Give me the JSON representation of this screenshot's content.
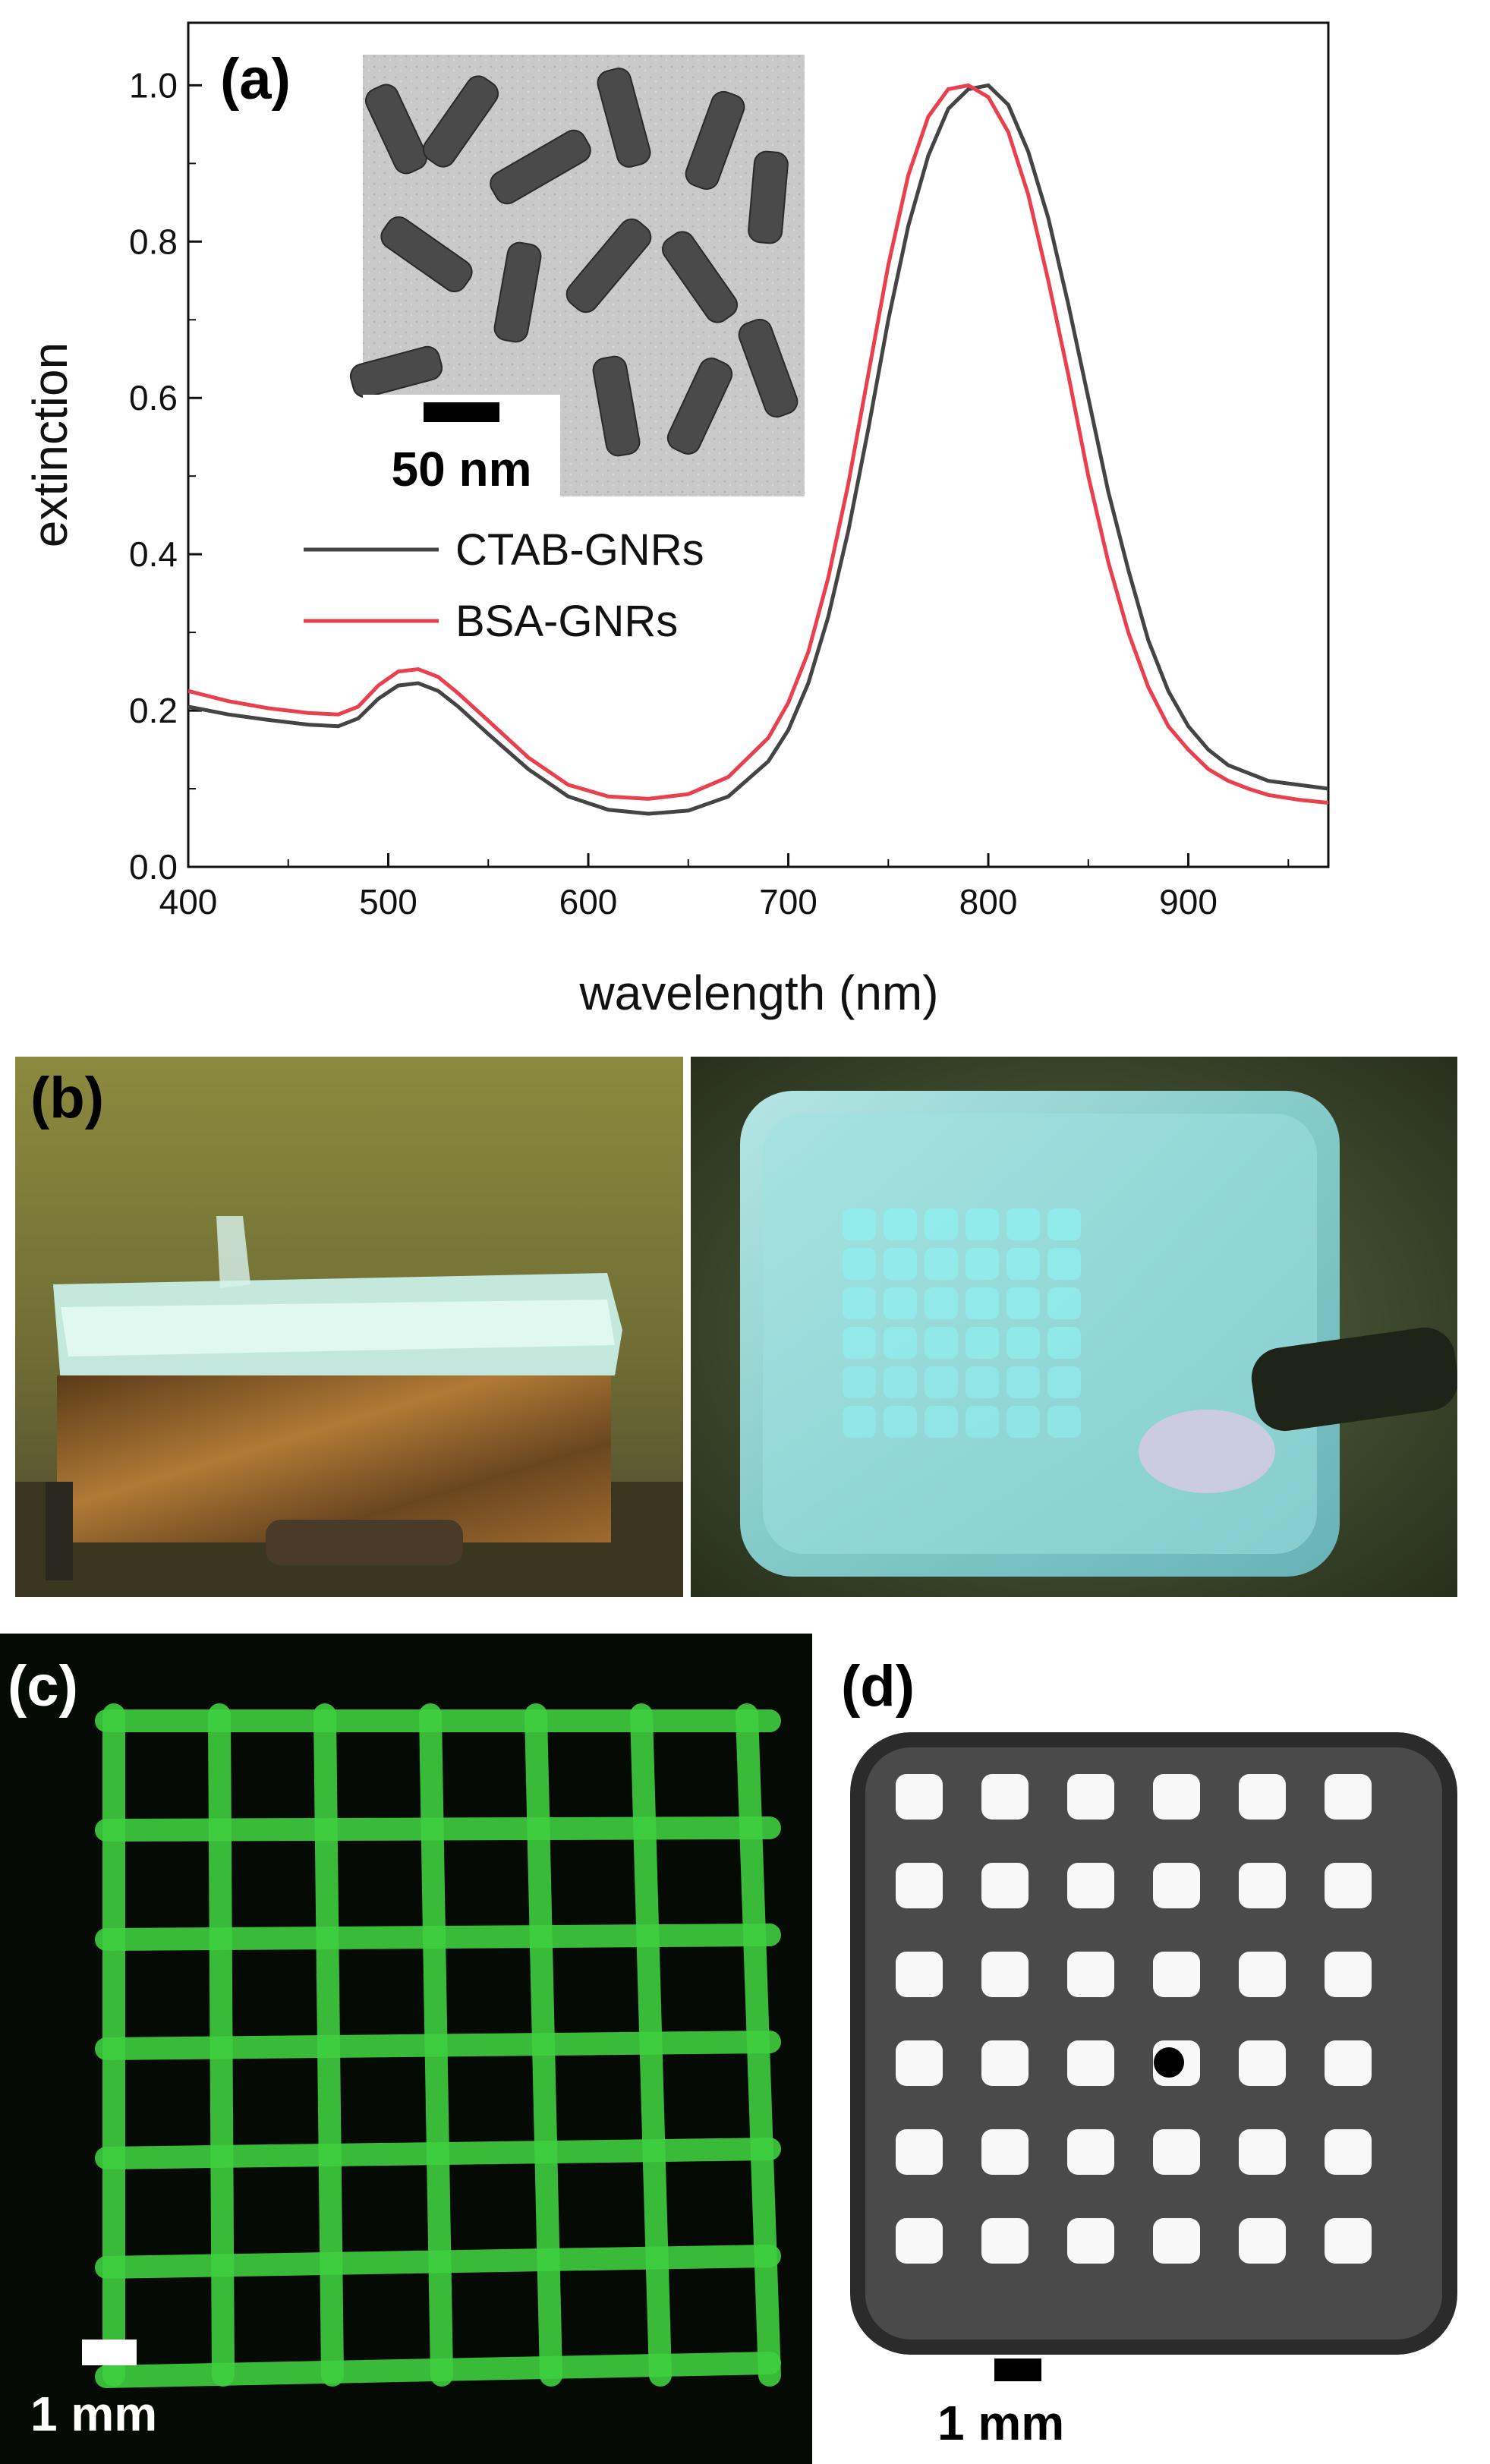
{
  "figure": {
    "panel_a_label": "(a)",
    "panel_b_label": "(b)",
    "panel_c_label": "(c)",
    "panel_d_label": "(d)",
    "inset_scale_label": "50 nm",
    "panel_c_scale_label": "1 mm",
    "panel_d_scale_label": "1 mm"
  },
  "colors": {
    "ctab": "#444444",
    "bsa": "#e8404f",
    "photo_left_bg": "#8c8a42",
    "photo_right_bg": "#3a4a2c",
    "gel_cyan": "#8ff0f0",
    "fluor_green": "#3fcf3f"
  },
  "chart_data": {
    "type": "line",
    "xlabel": "wavelength (nm)",
    "ylabel": "extinction",
    "xlim": [
      400,
      970
    ],
    "ylim": [
      0.0,
      1.08
    ],
    "xticks": [
      400,
      500,
      600,
      700,
      800,
      900
    ],
    "yticks": [
      0.0,
      0.2,
      0.4,
      0.6,
      0.8,
      1.0
    ],
    "ytick_labels": [
      "0.0",
      "0.2",
      "0.4",
      "0.6",
      "0.8",
      "1.0"
    ],
    "legend_placement": "center-left",
    "series": [
      {
        "name": "CTAB-GNRs",
        "color": "#444444",
        "x": [
          400,
          420,
          440,
          460,
          475,
          485,
          495,
          505,
          515,
          525,
          535,
          550,
          570,
          590,
          610,
          630,
          650,
          670,
          690,
          700,
          710,
          720,
          730,
          740,
          750,
          760,
          770,
          780,
          790,
          800,
          810,
          820,
          830,
          840,
          850,
          860,
          870,
          880,
          890,
          900,
          910,
          920,
          930,
          940,
          955,
          970
        ],
        "y": [
          0.205,
          0.195,
          0.188,
          0.182,
          0.18,
          0.19,
          0.215,
          0.232,
          0.235,
          0.225,
          0.205,
          0.17,
          0.125,
          0.09,
          0.073,
          0.068,
          0.072,
          0.09,
          0.135,
          0.175,
          0.235,
          0.32,
          0.43,
          0.56,
          0.7,
          0.82,
          0.91,
          0.97,
          0.995,
          1.0,
          0.975,
          0.915,
          0.83,
          0.72,
          0.6,
          0.48,
          0.38,
          0.29,
          0.225,
          0.18,
          0.15,
          0.13,
          0.12,
          0.11,
          0.105,
          0.1
        ]
      },
      {
        "name": "BSA-GNRs",
        "color": "#e8404f",
        "x": [
          400,
          420,
          440,
          460,
          475,
          485,
          495,
          505,
          515,
          525,
          535,
          550,
          570,
          590,
          610,
          630,
          650,
          670,
          690,
          700,
          710,
          720,
          730,
          740,
          750,
          760,
          770,
          780,
          790,
          800,
          810,
          820,
          830,
          840,
          850,
          860,
          870,
          880,
          890,
          900,
          910,
          920,
          930,
          940,
          955,
          970
        ],
        "y": [
          0.225,
          0.212,
          0.203,
          0.197,
          0.195,
          0.205,
          0.232,
          0.25,
          0.253,
          0.243,
          0.222,
          0.187,
          0.14,
          0.105,
          0.09,
          0.087,
          0.093,
          0.115,
          0.165,
          0.21,
          0.275,
          0.37,
          0.49,
          0.63,
          0.77,
          0.885,
          0.96,
          0.995,
          1.0,
          0.985,
          0.94,
          0.86,
          0.75,
          0.63,
          0.5,
          0.39,
          0.3,
          0.23,
          0.18,
          0.15,
          0.125,
          0.11,
          0.1,
          0.092,
          0.086,
          0.082
        ]
      }
    ]
  }
}
